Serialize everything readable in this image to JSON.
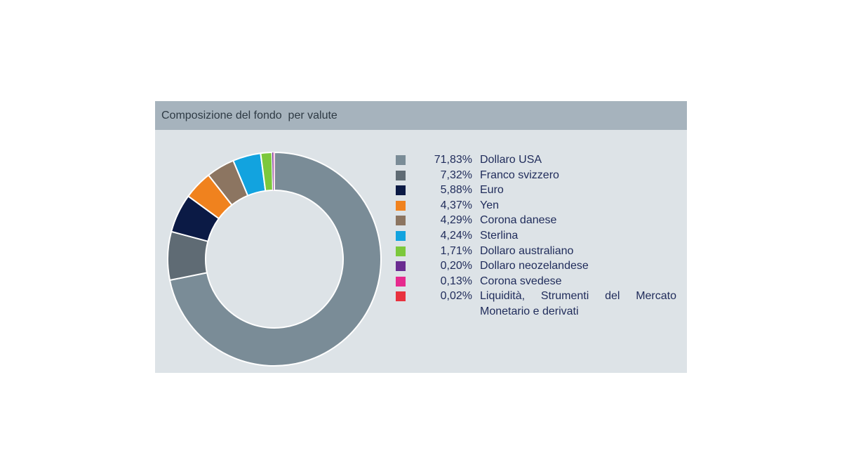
{
  "panel": {
    "title": "Composizione del fondo  per valute"
  },
  "chart_data": {
    "type": "pie",
    "donut": true,
    "title": "Composizione del fondo  per valute",
    "legend_position": "right",
    "slices": [
      {
        "label": "Dollaro USA",
        "value": 71.83,
        "value_text": "71,83%",
        "color": "#7a8c97"
      },
      {
        "label": "Franco svizzero",
        "value": 7.32,
        "value_text": "7,32%",
        "color": "#5f6b74"
      },
      {
        "label": "Euro",
        "value": 5.88,
        "value_text": "5,88%",
        "color": "#0b1a45"
      },
      {
        "label": "Yen",
        "value": 4.37,
        "value_text": "4,37%",
        "color": "#f0821e"
      },
      {
        "label": "Corona danese",
        "value": 4.29,
        "value_text": "4,29%",
        "color": "#8c7561"
      },
      {
        "label": "Sterlina",
        "value": 4.24,
        "value_text": "4,24%",
        "color": "#12a3df"
      },
      {
        "label": "Dollaro australiano",
        "value": 1.71,
        "value_text": "1,71%",
        "color": "#7cc83c"
      },
      {
        "label": "Dollaro neozelandese",
        "value": 0.2,
        "value_text": "0,20%",
        "color": "#6a2c91"
      },
      {
        "label": "Corona svedese",
        "value": 0.13,
        "value_text": "0,13%",
        "color": "#e62a8e"
      },
      {
        "label": "Liquidità, Strumenti del Mercato Monetario e derivati",
        "value": 0.02,
        "value_text": "0,02%",
        "color": "#e8323e"
      }
    ]
  }
}
